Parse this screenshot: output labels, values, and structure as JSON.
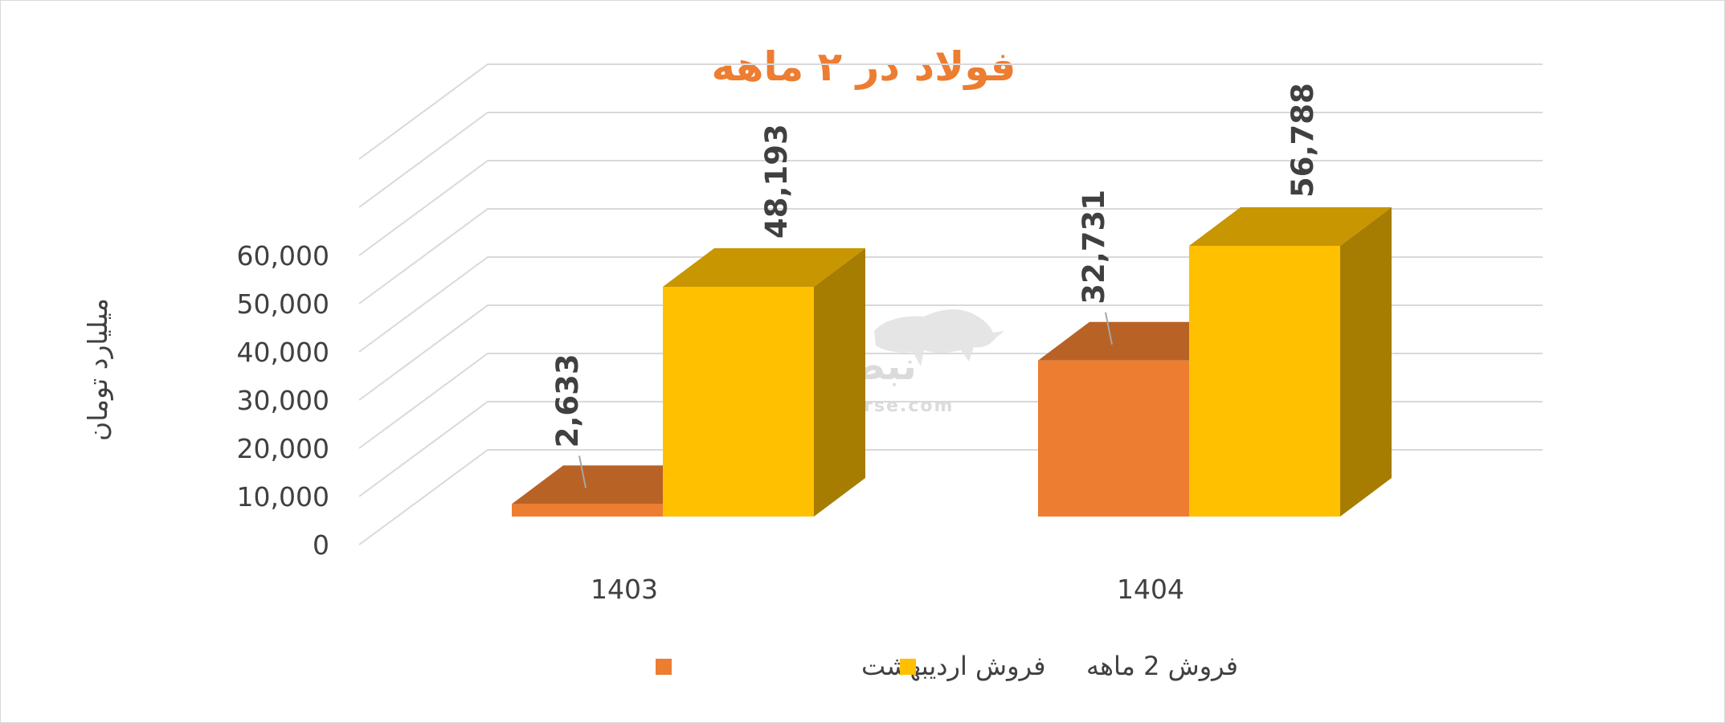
{
  "chart_data": {
    "type": "bar",
    "title": "فولاد در ۲ ماهه",
    "ylabel": "میلیارد تومان",
    "xlabel": "",
    "categories": [
      "1403",
      "1404"
    ],
    "series": [
      {
        "name": "فروش اردیبهشت",
        "values": [
          2633,
          32731
        ],
        "color": "#ed7d31",
        "data_labels": [
          "2,633",
          "32,731"
        ]
      },
      {
        "name": "فروش 2  ماهه",
        "values": [
          48193,
          56788
        ],
        "color": "#ffc000",
        "data_labels": [
          "48,193",
          "56,788"
        ]
      }
    ],
    "ylim": [
      0,
      60000
    ],
    "yticks": [
      0,
      10000,
      20000,
      30000,
      40000,
      50000,
      60000
    ],
    "ytick_labels": [
      "0",
      "10,000",
      "20,000",
      "30,000",
      "40,000",
      "50,000",
      "60,000"
    ],
    "grid": true,
    "legend_position": "bottom",
    "style": "3d-column"
  },
  "watermark": {
    "brand": "نبض بورس",
    "site": "nabzebourse.com"
  }
}
